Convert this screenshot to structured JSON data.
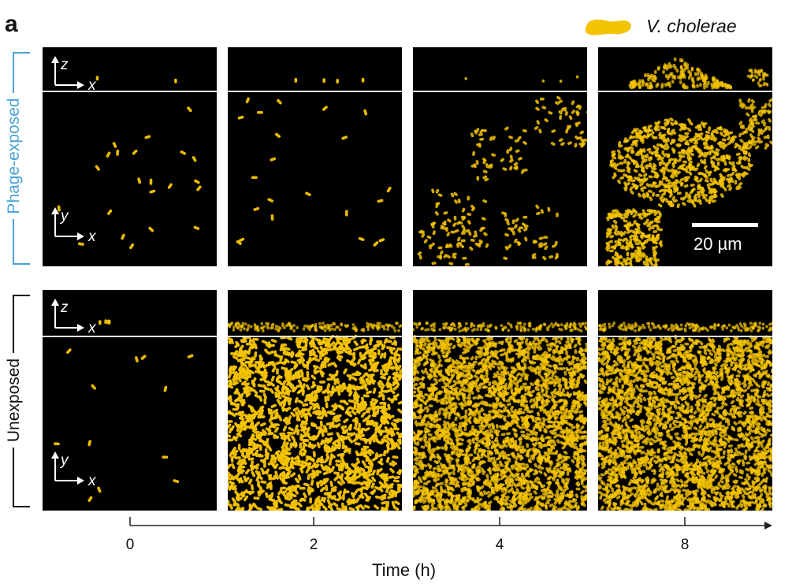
{
  "figure": {
    "panel_letter": "a",
    "legend": {
      "label": "V. cholerae",
      "color": "#f5c400"
    },
    "rows": [
      {
        "label": "Phage-exposed",
        "color": "#4aa3d8"
      },
      {
        "label": "Unexposed",
        "color": "#111111"
      }
    ],
    "side_view_axes": {
      "vertical": "z",
      "horizontal": "x"
    },
    "top_view_axes": {
      "vertical": "y",
      "horizontal": "x"
    },
    "scale_bar": "20 µm",
    "time_axis": {
      "label": "Time (h)",
      "ticks": [
        "0",
        "2",
        "4",
        "8"
      ]
    },
    "panels": {
      "phage_exposed": [
        {
          "time": "0",
          "density": "sparse"
        },
        {
          "time": "2",
          "density": "sparse"
        },
        {
          "time": "4",
          "density": "clusters"
        },
        {
          "time": "8",
          "density": "biofilm-colony"
        }
      ],
      "unexposed": [
        {
          "time": "0",
          "density": "sparse"
        },
        {
          "time": "2",
          "density": "dense"
        },
        {
          "time": "4",
          "density": "confluent"
        },
        {
          "time": "8",
          "density": "confluent"
        }
      ]
    }
  }
}
